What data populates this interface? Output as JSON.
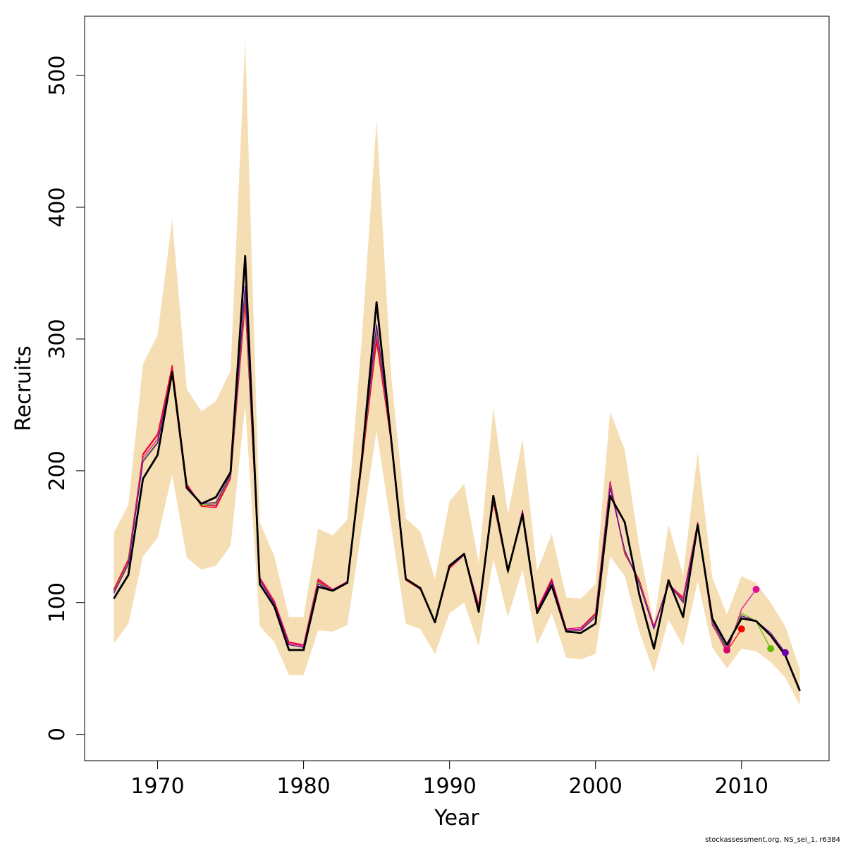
{
  "chart_data": {
    "type": "line",
    "xlabel": "Year",
    "ylabel": "Recruits",
    "xlim": [
      1965,
      2016
    ],
    "ylim": [
      -20,
      545
    ],
    "x_ticks": [
      1970,
      1980,
      1990,
      2000,
      2010
    ],
    "y_ticks": [
      0,
      100,
      200,
      300,
      400,
      500
    ],
    "grid": false,
    "legend": "none",
    "band_color": "#f5deb3",
    "colors": {
      "main": "#000000",
      "retro": [
        "#d8006f",
        "#ff0000",
        "#e0109b",
        "#66bb00",
        "#6a00a8"
      ]
    },
    "x": [
      1967,
      1968,
      1969,
      1970,
      1971,
      1972,
      1973,
      1974,
      1975,
      1976,
      1977,
      1978,
      1979,
      1980,
      1981,
      1982,
      1983,
      1984,
      1985,
      1986,
      1987,
      1988,
      1989,
      1990,
      1991,
      1992,
      1993,
      1994,
      1995,
      1996,
      1997,
      1998,
      1999,
      2000,
      2001,
      2002,
      2003,
      2004,
      2005,
      2006,
      2007,
      2008,
      2009,
      2010,
      2011,
      2012,
      2013,
      2014
    ],
    "band_lower": [
      69,
      84,
      135,
      149,
      197,
      134,
      125,
      128,
      143,
      250,
      82,
      70,
      45,
      45,
      79,
      78,
      83,
      157,
      230,
      158,
      84,
      80,
      61,
      92,
      100,
      67,
      133,
      89,
      125,
      68,
      92,
      58,
      57,
      61,
      135,
      120,
      78,
      47,
      87,
      67,
      116,
      66,
      50,
      65,
      63,
      55,
      43,
      22
    ],
    "band_upper": [
      153,
      174,
      281,
      303,
      391,
      262,
      245,
      253,
      276,
      527,
      161,
      135,
      89,
      89,
      156,
      151,
      163,
      302,
      466,
      272,
      164,
      154,
      118,
      177,
      190,
      130,
      248,
      167,
      224,
      124,
      152,
      104,
      103,
      114,
      245,
      216,
      142,
      84,
      159,
      121,
      214,
      119,
      91,
      120,
      115,
      100,
      82,
      49
    ],
    "main_series": {
      "values": [
        103,
        121,
        194,
        212,
        275,
        187,
        175,
        180,
        199,
        363,
        114,
        97,
        64,
        64,
        112,
        109,
        115,
        210,
        328,
        224,
        118,
        111,
        85,
        128,
        137,
        93,
        181,
        124,
        167,
        92,
        113,
        78,
        77,
        84,
        181,
        161,
        106,
        65,
        117,
        89,
        159,
        88,
        68,
        88,
        86,
        75,
        60,
        33
      ]
    },
    "retro_series": [
      {
        "x": [
          1967,
          1968,
          1969,
          1970,
          1971,
          1972,
          1973,
          1974,
          1975,
          1976,
          1977,
          1978,
          1979,
          1980,
          1981,
          1982,
          1983,
          1984,
          1985,
          1986,
          1987,
          1988,
          1989,
          1990,
          1991,
          1992,
          1993,
          1994,
          1995,
          1996,
          1997,
          1998,
          1999,
          2000,
          2001,
          2002,
          2003,
          2004,
          2005,
          2006,
          2007,
          2008,
          2009
        ],
        "values": [
          110,
          133,
          213,
          228,
          278,
          190,
          174,
          173,
          196,
          328,
          119,
          101,
          70,
          68,
          118,
          110,
          116,
          206,
          300,
          222,
          118,
          110,
          85,
          126,
          137,
          98,
          176,
          123,
          170,
          95,
          118,
          80,
          81,
          92,
          192,
          138,
          117,
          82,
          114,
          104,
          161,
          83,
          64
        ]
      },
      {
        "x": [
          1967,
          1968,
          1969,
          1970,
          1971,
          1972,
          1973,
          1974,
          1975,
          1976,
          1977,
          1978,
          1979,
          1980,
          1981,
          1982,
          1983,
          1984,
          1985,
          1986,
          1987,
          1988,
          1989,
          1990,
          1991,
          1992,
          1993,
          1994,
          1995,
          1996,
          1997,
          1998,
          1999,
          2000,
          2001,
          2002,
          2003,
          2004,
          2005,
          2006,
          2007,
          2008,
          2009,
          2010
        ],
        "values": [
          110,
          132,
          212,
          227,
          280,
          190,
          173,
          172,
          194,
          327,
          119,
          101,
          70,
          67,
          117,
          109,
          115,
          205,
          298,
          222,
          117,
          110,
          85,
          126,
          136,
          97,
          176,
          124,
          169,
          95,
          117,
          79,
          80,
          92,
          190,
          137,
          117,
          82,
          113,
          103,
          160,
          84,
          63,
          80
        ]
      },
      {
        "x": [
          1967,
          1968,
          1969,
          1970,
          1971,
          1972,
          1973,
          1974,
          1975,
          1976,
          1977,
          1978,
          1979,
          1980,
          1981,
          1982,
          1983,
          1984,
          1985,
          1986,
          1987,
          1988,
          1989,
          1990,
          1991,
          1992,
          1993,
          1994,
          1995,
          1996,
          1997,
          1998,
          1999,
          2000,
          2001,
          2002,
          2003,
          2004,
          2005,
          2006,
          2007,
          2008,
          2009,
          2010,
          2011
        ],
        "values": [
          109,
          131,
          210,
          224,
          277,
          189,
          174,
          174,
          195,
          332,
          118,
          100,
          69,
          67,
          116,
          109,
          115,
          207,
          304,
          223,
          118,
          110,
          85,
          127,
          136,
          96,
          177,
          123,
          168,
          94,
          116,
          79,
          80,
          91,
          190,
          138,
          116,
          81,
          113,
          102,
          160,
          84,
          62,
          95,
          110
        ]
      },
      {
        "x": [
          1967,
          1968,
          1969,
          1970,
          1971,
          1972,
          1973,
          1974,
          1975,
          1976,
          1977,
          1978,
          1979,
          1980,
          1981,
          1982,
          1983,
          1984,
          1985,
          1986,
          1987,
          1988,
          1989,
          1990,
          1991,
          1992,
          1993,
          1994,
          1995,
          1996,
          1997,
          1998,
          1999,
          2000,
          2001,
          2002,
          2003,
          2004,
          2005,
          2006,
          2007,
          2008,
          2009,
          2010,
          2011,
          2012
        ],
        "values": [
          108,
          130,
          208,
          222,
          276,
          188,
          174,
          175,
          196,
          336,
          117,
          99,
          68,
          66,
          115,
          109,
          115,
          208,
          308,
          223,
          118,
          110,
          85,
          127,
          136,
          95,
          178,
          122,
          168,
          93,
          115,
          79,
          79,
          90,
          188,
          139,
          115,
          80,
          114,
          101,
          159,
          85,
          64,
          92,
          86,
          65
        ]
      },
      {
        "x": [
          1967,
          1968,
          1969,
          1970,
          1971,
          1972,
          1973,
          1974,
          1975,
          1976,
          1977,
          1978,
          1979,
          1980,
          1981,
          1982,
          1983,
          1984,
          1985,
          1986,
          1987,
          1988,
          1989,
          1990,
          1991,
          1992,
          1993,
          1994,
          1995,
          1996,
          1997,
          1998,
          1999,
          2000,
          2001,
          2002,
          2003,
          2004,
          2005,
          2006,
          2007,
          2008,
          2009,
          2010,
          2011,
          2012,
          2013
        ],
        "values": [
          107,
          129,
          207,
          221,
          276,
          188,
          175,
          176,
          197,
          340,
          117,
          99,
          68,
          66,
          114,
          109,
          115,
          209,
          311,
          223,
          118,
          110,
          85,
          127,
          136,
          95,
          179,
          123,
          169,
          93,
          116,
          79,
          79,
          89,
          187,
          140,
          114,
          80,
          115,
          100,
          159,
          86,
          65,
          90,
          86,
          77,
          62
        ]
      }
    ]
  },
  "footer": "stockassessment.org, NS_sei_1, r6384"
}
